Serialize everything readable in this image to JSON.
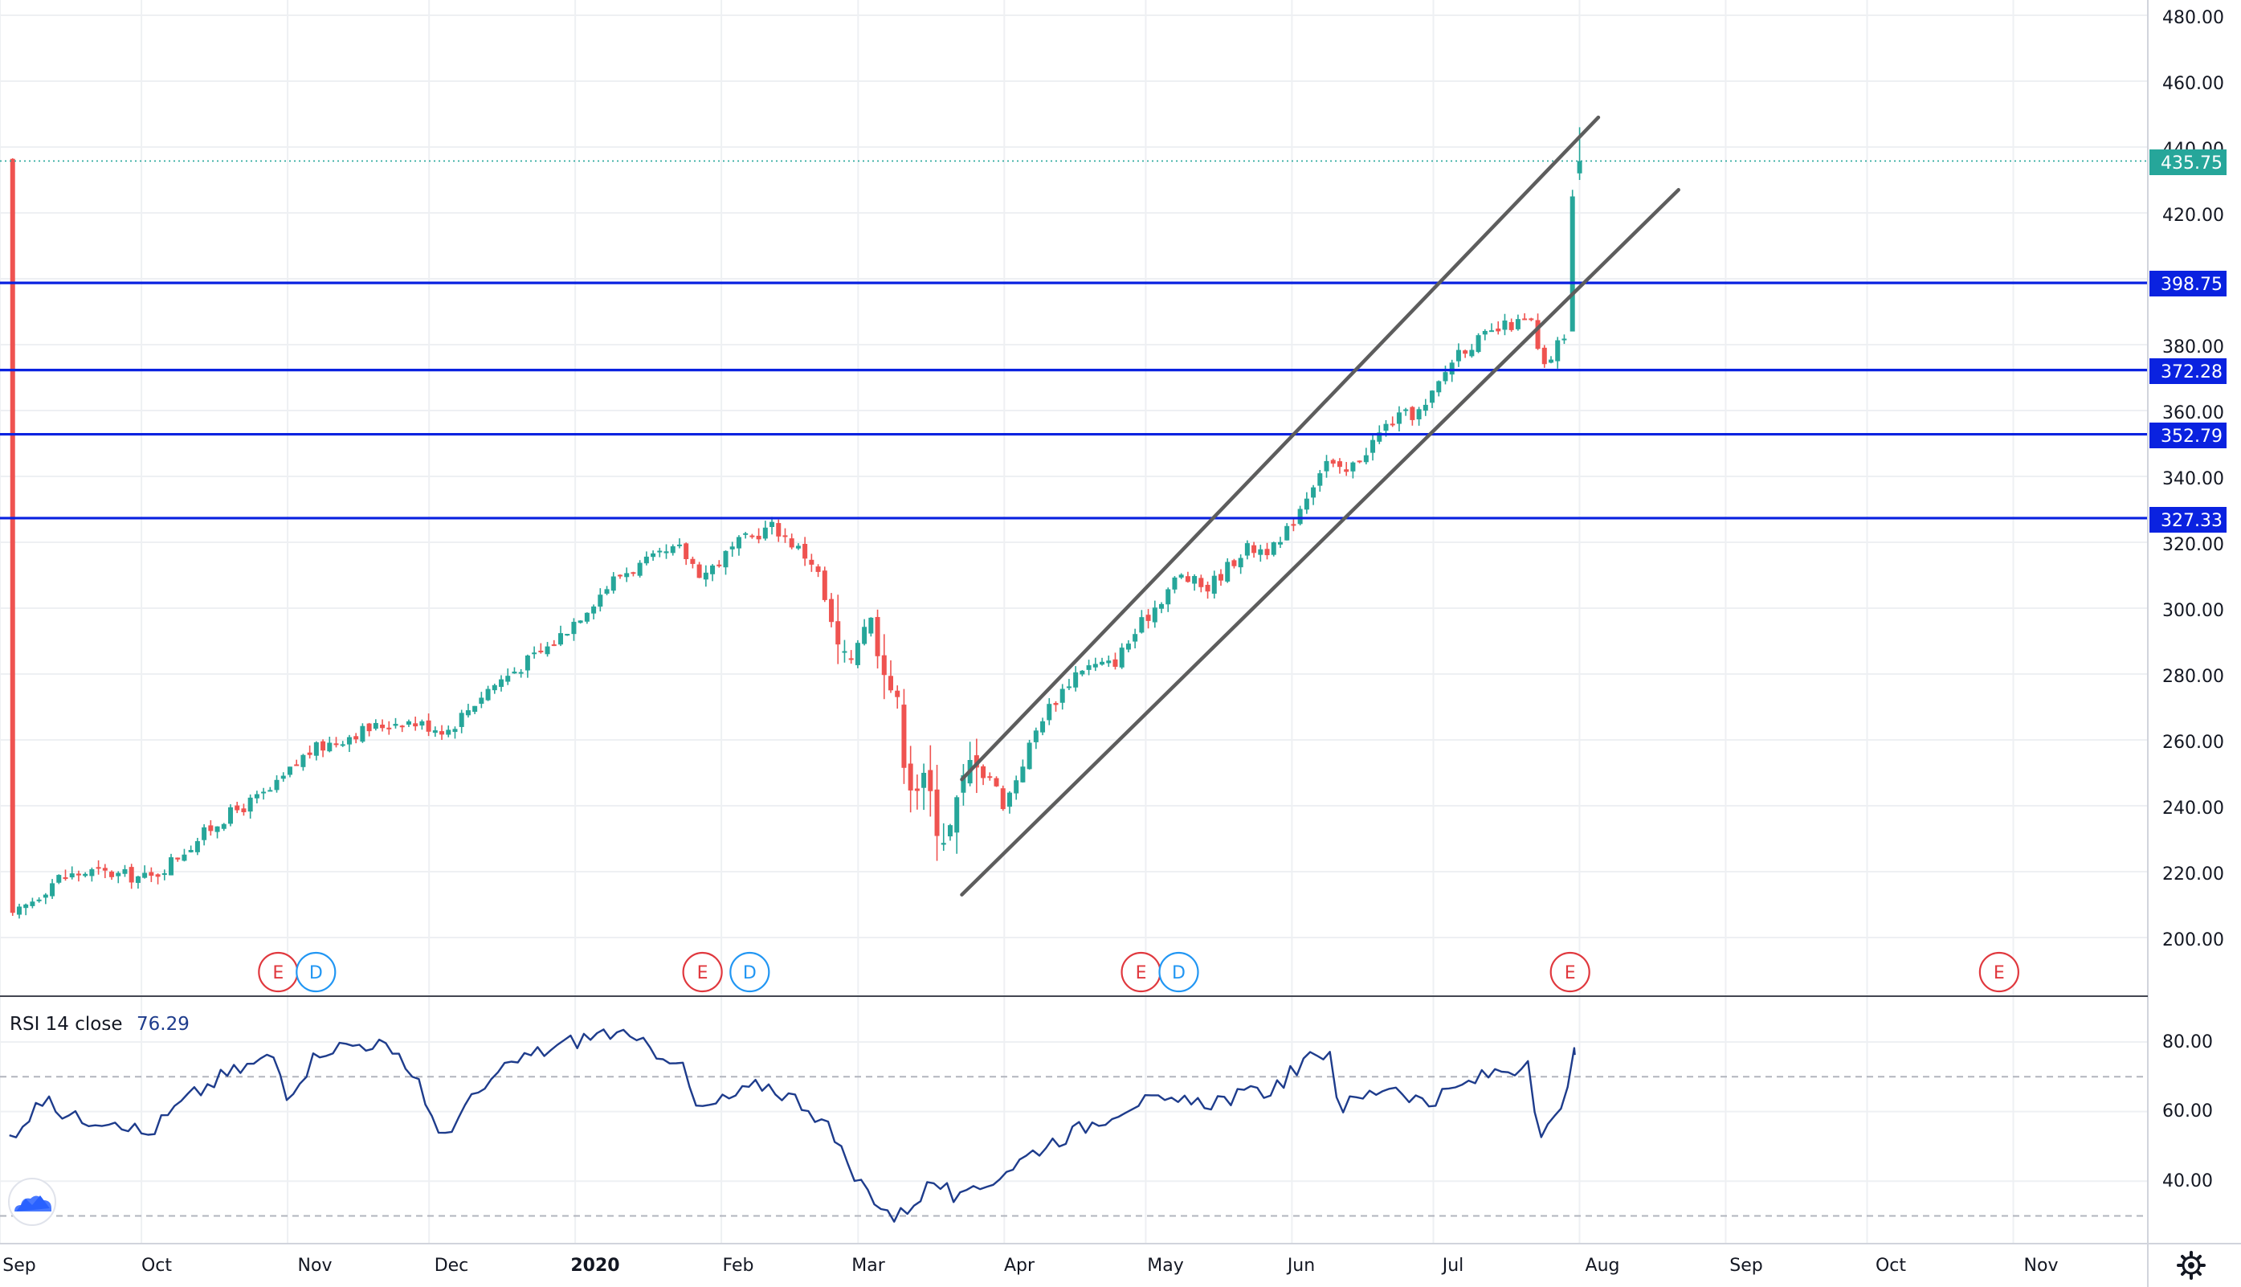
{
  "colors": {
    "up": "#26a69a",
    "down": "#ef5350",
    "level": "#0a22e0",
    "channel": "#5d5d5d",
    "rsi": "#1e3c8c",
    "last_price": "#26a69a",
    "grid": "#eef0f3",
    "earnings": "#e0383e",
    "dividend": "#2196f3"
  },
  "price_axis": {
    "ticks": [
      "480.00",
      "460.00",
      "440.00",
      "420.00",
      "380.00",
      "360.00",
      "340.00",
      "320.00",
      "300.00",
      "280.00",
      "260.00",
      "240.00",
      "220.00",
      "200.00"
    ]
  },
  "price_tags": {
    "last": "435.75",
    "levels": [
      "398.75",
      "372.28",
      "352.79",
      "327.33"
    ]
  },
  "rsi": {
    "label": "RSI 14 close",
    "value": "76.29",
    "ticks": [
      "80.00",
      "60.00",
      "40.00"
    ]
  },
  "time_axis": [
    "Sep",
    "Oct",
    "Nov",
    "Dec",
    "2020",
    "Feb",
    "Mar",
    "Apr",
    "May",
    "Jun",
    "Jul",
    "Aug",
    "Sep",
    "Oct",
    "Nov"
  ],
  "events": [
    "E",
    "D",
    "E",
    "D",
    "E",
    "D",
    "E",
    "E"
  ],
  "icons": {
    "logo": "tradingview-cloud-icon",
    "settings": "gear-icon"
  },
  "chart_data": [
    {
      "type": "candlestick",
      "title": "",
      "x_range": [
        "2019-09",
        "2020-11"
      ],
      "ylim": [
        185,
        485
      ],
      "y_ticks": [
        200,
        220,
        240,
        260,
        280,
        300,
        320,
        340,
        360,
        380,
        420,
        440,
        460,
        480
      ],
      "last_price": 435.75,
      "horizontal_levels": [
        398.75,
        372.28,
        352.79,
        327.33
      ],
      "channel_lines": [
        {
          "from": [
            "2020-03-23",
            248
          ],
          "to": [
            "2020-08-05",
            449
          ]
        },
        {
          "from": [
            "2020-03-23",
            213
          ],
          "to": [
            "2020-08-22",
            427
          ]
        }
      ],
      "events": [
        {
          "date": "2019-10-30",
          "kind": "E"
        },
        {
          "date": "2019-11-07",
          "kind": "D"
        },
        {
          "date": "2020-01-28",
          "kind": "E"
        },
        {
          "date": "2020-02-07",
          "kind": "D"
        },
        {
          "date": "2020-04-30",
          "kind": "E"
        },
        {
          "date": "2020-05-08",
          "kind": "D"
        },
        {
          "date": "2020-07-30",
          "kind": "E"
        },
        {
          "date": "2020-10-29",
          "kind": "E"
        }
      ],
      "close_anchors": [
        [
          "2019-09-03",
          205
        ],
        [
          "2019-09-13",
          218
        ],
        [
          "2019-09-20",
          220
        ],
        [
          "2019-10-03",
          218
        ],
        [
          "2019-10-18",
          236
        ],
        [
          "2019-10-29",
          245
        ],
        [
          "2019-11-05",
          256
        ],
        [
          "2019-11-15",
          262
        ],
        [
          "2019-11-25",
          266
        ],
        [
          "2019-12-05",
          263
        ],
        [
          "2019-12-13",
          275
        ],
        [
          "2019-12-27",
          289
        ],
        [
          "2020-01-10",
          310
        ],
        [
          "2020-01-23",
          318
        ],
        [
          "2020-01-28",
          310
        ],
        [
          "2020-02-05",
          320
        ],
        [
          "2020-02-12",
          325
        ],
        [
          "2020-02-21",
          313
        ],
        [
          "2020-02-27",
          280
        ],
        [
          "2020-03-02",
          299
        ],
        [
          "2020-03-06",
          290
        ],
        [
          "2020-03-12",
          250
        ],
        [
          "2020-03-16",
          243
        ],
        [
          "2020-03-20",
          230
        ],
        [
          "2020-03-26",
          258
        ],
        [
          "2020-04-01",
          240
        ],
        [
          "2020-04-09",
          267
        ],
        [
          "2020-04-17",
          282
        ],
        [
          "2020-04-24",
          283
        ],
        [
          "2020-04-30",
          295
        ],
        [
          "2020-05-08",
          310
        ],
        [
          "2020-05-14",
          306
        ],
        [
          "2020-05-22",
          318
        ],
        [
          "2020-05-29",
          318
        ],
        [
          "2020-06-08",
          345
        ],
        [
          "2020-06-12",
          340
        ],
        [
          "2020-06-22",
          357
        ],
        [
          "2020-06-29",
          360
        ],
        [
          "2020-07-06",
          378
        ],
        [
          "2020-07-13",
          383
        ],
        [
          "2020-07-17",
          386
        ],
        [
          "2020-07-22",
          387
        ],
        [
          "2020-07-24",
          371
        ],
        [
          "2020-07-27",
          379
        ],
        [
          "2020-07-29",
          384
        ],
        [
          "2020-07-30",
          425
        ],
        [
          "2020-07-31",
          435.75
        ]
      ],
      "rsi_series": {
        "name": "RSI 14 close",
        "last_value": 76.29,
        "ylim": [
          25,
          92
        ],
        "bands": [
          70,
          30
        ],
        "points": [
          [
            "2019-09-03",
            53
          ],
          [
            "2019-09-10",
            63
          ],
          [
            "2019-09-17",
            58
          ],
          [
            "2019-09-26",
            58
          ],
          [
            "2019-10-02",
            53
          ],
          [
            "2019-10-10",
            63
          ],
          [
            "2019-10-18",
            70
          ],
          [
            "2019-10-29",
            76
          ],
          [
            "2019-11-01",
            65
          ],
          [
            "2019-11-08",
            78
          ],
          [
            "2019-11-20",
            80
          ],
          [
            "2019-11-29",
            69
          ],
          [
            "2019-12-03",
            52
          ],
          [
            "2019-12-12",
            66
          ],
          [
            "2019-12-20",
            75
          ],
          [
            "2019-12-31",
            80
          ],
          [
            "2020-01-08",
            83
          ],
          [
            "2020-01-15",
            79
          ],
          [
            "2020-01-23",
            75
          ],
          [
            "2020-01-27",
            60
          ],
          [
            "2020-02-03",
            64
          ],
          [
            "2020-02-10",
            68
          ],
          [
            "2020-02-19",
            62
          ],
          [
            "2020-02-24",
            55
          ],
          [
            "2020-02-28",
            43
          ],
          [
            "2020-03-09",
            29
          ],
          [
            "2020-03-17",
            40
          ],
          [
            "2020-03-23",
            34
          ],
          [
            "2020-03-31",
            42
          ],
          [
            "2020-04-09",
            50
          ],
          [
            "2020-04-17",
            55
          ],
          [
            "2020-04-29",
            63
          ],
          [
            "2020-05-08",
            62
          ],
          [
            "2020-05-15",
            63
          ],
          [
            "2020-05-27",
            66
          ],
          [
            "2020-06-05",
            75
          ],
          [
            "2020-06-09",
            78
          ],
          [
            "2020-06-11",
            61
          ],
          [
            "2020-06-22",
            68
          ],
          [
            "2020-06-30",
            62
          ],
          [
            "2020-07-08",
            68
          ],
          [
            "2020-07-15",
            72
          ],
          [
            "2020-07-21",
            73
          ],
          [
            "2020-07-23",
            52
          ],
          [
            "2020-07-28",
            59
          ],
          [
            "2020-07-30",
            73
          ],
          [
            "2020-07-31",
            76.29
          ]
        ]
      }
    }
  ]
}
